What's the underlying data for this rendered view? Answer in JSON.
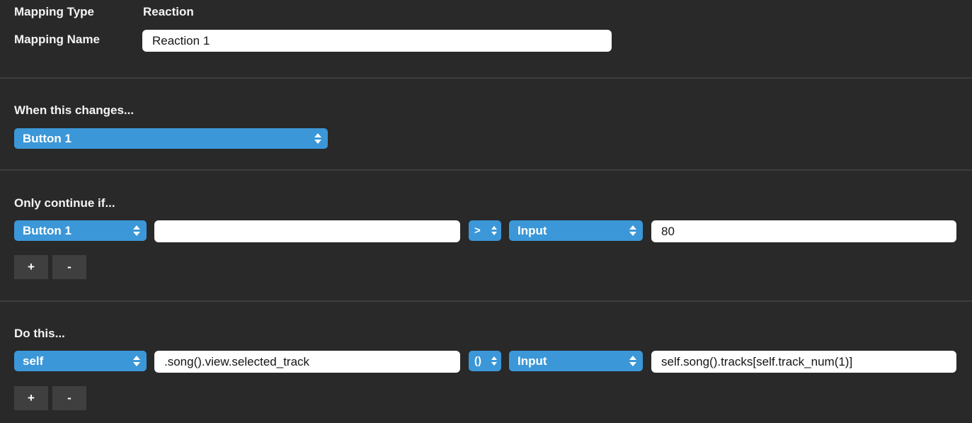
{
  "header": {
    "mapping_type_label": "Mapping Type",
    "mapping_type_value": "Reaction",
    "mapping_name_label": "Mapping Name",
    "mapping_name_value": "Reaction 1"
  },
  "trigger_section": {
    "title": "When this changes...",
    "source_select_value": "Button 1"
  },
  "condition_section": {
    "title": "Only continue if...",
    "subject_select_value": "Button 1",
    "subject_input_value": "",
    "operator_select_value": ">",
    "comparand_select_value": "Input",
    "comparand_input_value": "80",
    "add_button_label": "+",
    "remove_button_label": "-"
  },
  "action_section": {
    "title": "Do this...",
    "target_select_value": "self",
    "target_input_value": ".song().view.selected_track",
    "operator_select_value": "()",
    "value_select_value": "Input",
    "value_input_value": "self.song().tracks[self.track_num(1)]",
    "add_button_label": "+",
    "remove_button_label": "-"
  },
  "colors": {
    "background": "#292929",
    "accent_blue": "#3b97d8",
    "divider": "#3d3d3d",
    "button_gray": "#3f3f3f",
    "input_background": "#ffffff"
  }
}
